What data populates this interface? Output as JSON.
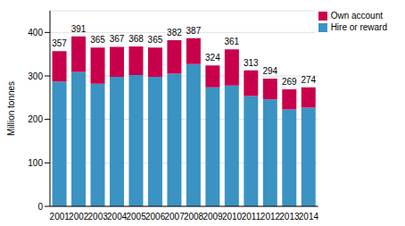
{
  "chart_data": {
    "type": "bar",
    "stacked": true,
    "y_label": "Million tonnes",
    "categories": [
      "2001",
      "2002",
      "2003",
      "2004",
      "2005",
      "2006",
      "2007",
      "2008",
      "2009",
      "2010",
      "2011",
      "2012",
      "2013",
      "2014"
    ],
    "series": [
      {
        "name": "Hire or reward",
        "color": "#3a93c3",
        "values": [
          287,
          309,
          282,
          298,
          302,
          298,
          305,
          327,
          274,
          278,
          254,
          246,
          223,
          227
        ]
      },
      {
        "name": "Own account",
        "color": "#c8004b",
        "values": [
          70,
          82,
          83,
          69,
          66,
          67,
          77,
          60,
          50,
          83,
          59,
          48,
          46,
          47
        ]
      }
    ],
    "totals": [
      357,
      391,
      365,
      367,
      368,
      365,
      382,
      387,
      324,
      361,
      313,
      294,
      269,
      274
    ],
    "ylim": [
      0,
      450
    ],
    "yticks": [
      0,
      100,
      200,
      300,
      400
    ],
    "grid": true,
    "legend": "upper right"
  }
}
